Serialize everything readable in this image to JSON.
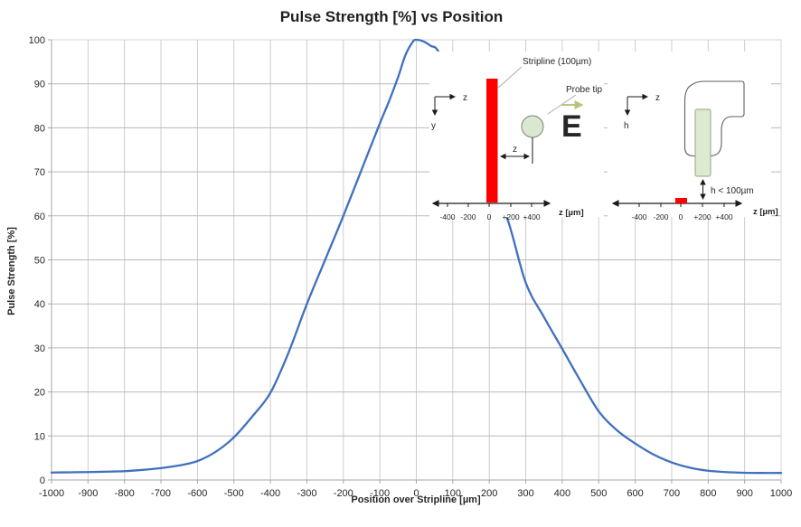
{
  "title": "Pulse Strength [%] vs Position",
  "chart_data": {
    "type": "line",
    "title": "Pulse Strength [%] vs Position",
    "xlabel": "Position over Stripline [µm]",
    "ylabel": "Pulse Strength [%]",
    "xlim": [
      -1000,
      1000
    ],
    "ylim": [
      0,
      100
    ],
    "x_ticks": [
      -1000,
      -900,
      -800,
      -700,
      -600,
      -500,
      -400,
      -300,
      -200,
      -100,
      0,
      100,
      200,
      300,
      400,
      500,
      600,
      700,
      800,
      900,
      1000
    ],
    "y_ticks": [
      0,
      10,
      20,
      30,
      40,
      50,
      60,
      70,
      80,
      90,
      100
    ],
    "grid": true,
    "legend": "none",
    "line_color": "#4170BE",
    "series": [
      {
        "name": "Pulse Strength [%]",
        "points": [
          [
            -1000,
            1.7
          ],
          [
            -950,
            1.75
          ],
          [
            -900,
            1.8
          ],
          [
            -850,
            1.9
          ],
          [
            -800,
            2.0
          ],
          [
            -750,
            2.3
          ],
          [
            -700,
            2.7
          ],
          [
            -650,
            3.3
          ],
          [
            -600,
            4.3
          ],
          [
            -550,
            6.4
          ],
          [
            -500,
            9.7
          ],
          [
            -450,
            14.4
          ],
          [
            -400,
            19.8
          ],
          [
            -350,
            29.0
          ],
          [
            -300,
            40.0
          ],
          [
            -250,
            50.0
          ],
          [
            -200,
            60.0
          ],
          [
            -150,
            70.5
          ],
          [
            -100,
            81.0
          ],
          [
            -75,
            86.0
          ],
          [
            -50,
            91.5
          ],
          [
            -30,
            96.5
          ],
          [
            -10,
            99.5
          ],
          [
            0,
            100.0
          ],
          [
            20,
            99.6
          ],
          [
            40,
            98.6
          ],
          [
            60,
            97.4
          ],
          [
            100,
            90.0
          ],
          [
            150,
            79.0
          ],
          [
            200,
            67.5
          ],
          [
            250,
            59.2
          ],
          [
            300,
            44.8
          ],
          [
            350,
            37.0
          ],
          [
            400,
            29.8
          ],
          [
            450,
            22.5
          ],
          [
            500,
            15.6
          ],
          [
            550,
            11.3
          ],
          [
            600,
            8.3
          ],
          [
            650,
            5.8
          ],
          [
            700,
            4.0
          ],
          [
            750,
            2.8
          ],
          [
            800,
            2.1
          ],
          [
            850,
            1.8
          ],
          [
            900,
            1.65
          ],
          [
            950,
            1.6
          ],
          [
            1000,
            1.6
          ]
        ]
      }
    ]
  },
  "colors": {
    "curve": "#4170BE",
    "stripline_red": "#FE0000",
    "probe_green": "#DCEAD0",
    "efield_olive": "#BDC07F",
    "gridline_h": "#b9b9b9",
    "gridline_v": "#cdcdcd",
    "axis_line": "#a6a6a6"
  },
  "insets": {
    "left": {
      "stripline_label": "Stripline (100µm)",
      "probe_tip_label": "Probe tip",
      "efield_symbol": "E",
      "coord_z_label": "z",
      "coord_y_label": "y",
      "dim_label": "z",
      "xaxis_label": "z [µm]",
      "ticks": [
        "-400",
        "-200",
        "0",
        "+200",
        "+400"
      ]
    },
    "right": {
      "coord_z_label": "z",
      "coord_h_label": "h",
      "dim_label": "h < 100µm",
      "xaxis_label": "z [µm]",
      "ticks": [
        "-400",
        "-200",
        "0",
        "+200",
        "+400"
      ]
    }
  }
}
